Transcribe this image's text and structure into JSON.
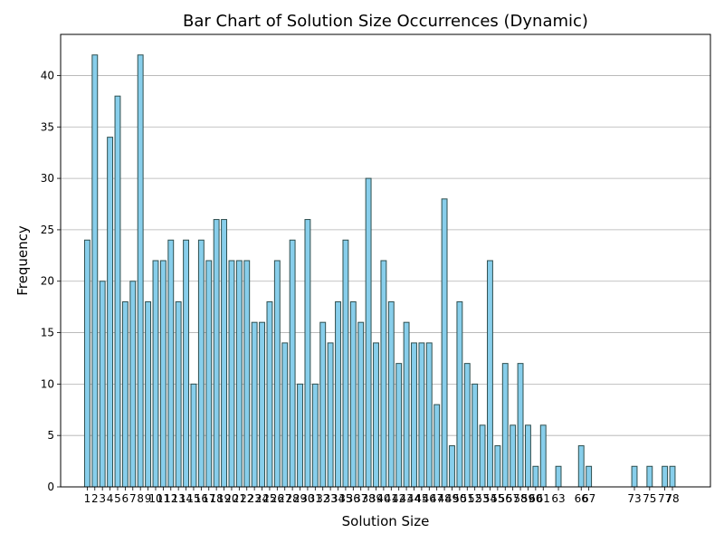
{
  "chart_data": {
    "type": "bar",
    "title": "Bar Chart of Solution Size Occurrences (Dynamic)",
    "xlabel": "Solution Size",
    "ylabel": "Frequency",
    "ylim": [
      0,
      44
    ],
    "xlim": [
      -2.5,
      83
    ],
    "yticks": [
      0,
      5,
      10,
      15,
      20,
      25,
      30,
      35,
      40
    ],
    "grid": "y",
    "bar_color": "#87CEEB",
    "edge_color": "#2F4F4F",
    "x": [
      1,
      2,
      3,
      4,
      5,
      6,
      7,
      8,
      9,
      10,
      11,
      12,
      13,
      14,
      15,
      16,
      17,
      18,
      19,
      20,
      21,
      22,
      23,
      24,
      25,
      26,
      27,
      28,
      29,
      30,
      31,
      32,
      33,
      34,
      35,
      36,
      37,
      38,
      39,
      40,
      41,
      42,
      43,
      44,
      45,
      46,
      47,
      48,
      49,
      50,
      51,
      52,
      53,
      54,
      55,
      56,
      57,
      58,
      59,
      60,
      61,
      63,
      66,
      67,
      73,
      75,
      77,
      78
    ],
    "values": [
      24,
      42,
      20,
      34,
      38,
      18,
      20,
      42,
      18,
      22,
      22,
      24,
      18,
      24,
      10,
      24,
      22,
      26,
      26,
      22,
      22,
      22,
      16,
      16,
      18,
      22,
      14,
      24,
      10,
      26,
      10,
      16,
      14,
      18,
      24,
      18,
      16,
      30,
      14,
      22,
      18,
      12,
      16,
      14,
      14,
      14,
      8,
      28,
      4,
      18,
      12,
      10,
      6,
      22,
      4,
      12,
      6,
      12,
      6,
      2,
      6,
      2,
      4,
      2,
      2,
      2,
      2,
      2
    ]
  }
}
